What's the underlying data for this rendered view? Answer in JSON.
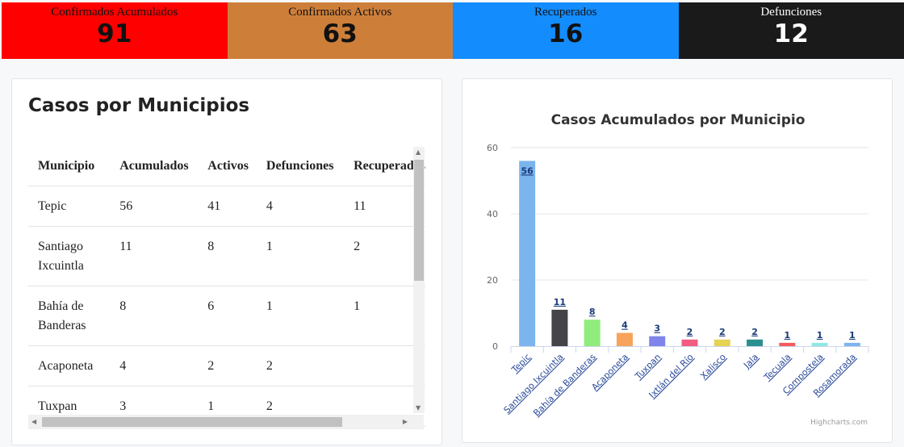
{
  "stats": [
    {
      "label": "Confirmados Acumulados",
      "value": "91",
      "color": "#ff0000"
    },
    {
      "label": "Confirmados Activos",
      "value": "63",
      "color": "#cd7f3a"
    },
    {
      "label": "Recuperados",
      "value": "16",
      "color": "#138cfd"
    },
    {
      "label": "Defunciones",
      "value": "12",
      "color": "#1a1a1a"
    }
  ],
  "table": {
    "title": "Casos por Municipios",
    "headers": [
      "Municipio",
      "Acumulados",
      "Activos",
      "Defunciones",
      "Recuperados"
    ],
    "rows": [
      [
        "Tepic",
        "56",
        "41",
        "4",
        "11"
      ],
      [
        "Santiago Ixcuintla",
        "11",
        "8",
        "1",
        "2"
      ],
      [
        "Bahía de Banderas",
        "8",
        "6",
        "1",
        "1"
      ],
      [
        "Acaponeta",
        "4",
        "2",
        "2",
        ""
      ],
      [
        "Tuxpan",
        "3",
        "1",
        "2",
        ""
      ]
    ]
  },
  "chart_data": {
    "type": "bar",
    "title": "Casos Acumulados por Municipio",
    "categories": [
      "Tepic",
      "Santiago Ixcuintla",
      "Bahía de Banderas",
      "Acaponeta",
      "Tuxpan",
      "Ixtlán del Río",
      "Xalisco",
      "Jala",
      "Tecuala",
      "Compostela",
      "Rosamorada"
    ],
    "values": [
      56,
      11,
      8,
      4,
      3,
      2,
      2,
      2,
      1,
      1,
      1
    ],
    "colors": [
      "#7cb5ec",
      "#434348",
      "#90ed7d",
      "#f7a35c",
      "#8085e9",
      "#f15c80",
      "#e4d354",
      "#2b908f",
      "#f45b5b",
      "#91e8e1",
      "#7cb5ec"
    ],
    "ylim": [
      0,
      60
    ],
    "yticks": [
      0,
      20,
      40,
      60
    ],
    "grid": true,
    "credits": "Highcharts.com"
  }
}
